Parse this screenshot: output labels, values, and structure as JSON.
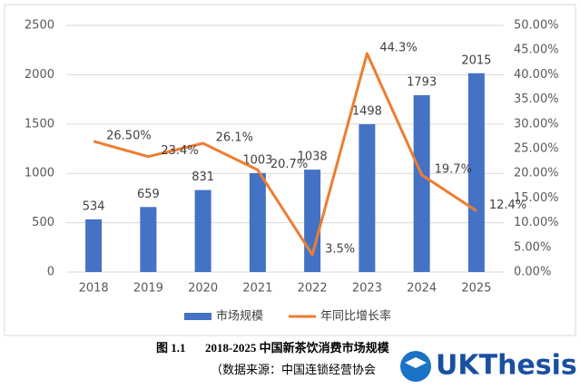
{
  "chart_data": {
    "type": "bar-line",
    "categories": [
      "2018",
      "2019",
      "2020",
      "2021",
      "2022",
      "2023",
      "2024",
      "2025"
    ],
    "series": [
      {
        "name": "市场规模",
        "type": "bar",
        "color": "#4472c4",
        "values": [
          534,
          659,
          831,
          1003,
          1038,
          1498,
          1793,
          2015
        ]
      },
      {
        "name": "年同比增长率",
        "type": "line",
        "axis": "y2",
        "color": "#ed7d31",
        "values": [
          26.5,
          23.4,
          26.1,
          20.7,
          3.5,
          44.3,
          19.7,
          12.4
        ],
        "value_labels": [
          "26.50%",
          "23.4%",
          "26.1%",
          "20.7%",
          "3.5%",
          "44.3%",
          "19.7%",
          "12.4%"
        ]
      }
    ],
    "ylim": [
      0,
      2500
    ],
    "yticks": [
      0,
      500,
      1000,
      1500,
      2000,
      2500
    ],
    "y2lim": [
      0,
      50
    ],
    "y2ticks": [
      {
        "value": 0,
        "label": "0.00%"
      },
      {
        "value": 5,
        "label": "5.00%"
      },
      {
        "value": 10,
        "label": "10.00%"
      },
      {
        "value": 15,
        "label": "15.00%"
      },
      {
        "value": 20,
        "label": "20.00%"
      },
      {
        "value": 25,
        "label": "25.00%"
      },
      {
        "value": 30,
        "label": "30.00%"
      },
      {
        "value": 35,
        "label": "35.00%"
      },
      {
        "value": 40,
        "label": "40.00%"
      },
      {
        "value": 45,
        "label": "45.00%"
      },
      {
        "value": 50,
        "label": "50.00%"
      }
    ],
    "grid": true,
    "legend": "bottom"
  },
  "caption": {
    "number": "图 1.1",
    "title": "2018-2025 中国新茶饮消费市场规模",
    "source": "（数据来源：中国连锁经营协会"
  },
  "watermark": "UKThesis"
}
